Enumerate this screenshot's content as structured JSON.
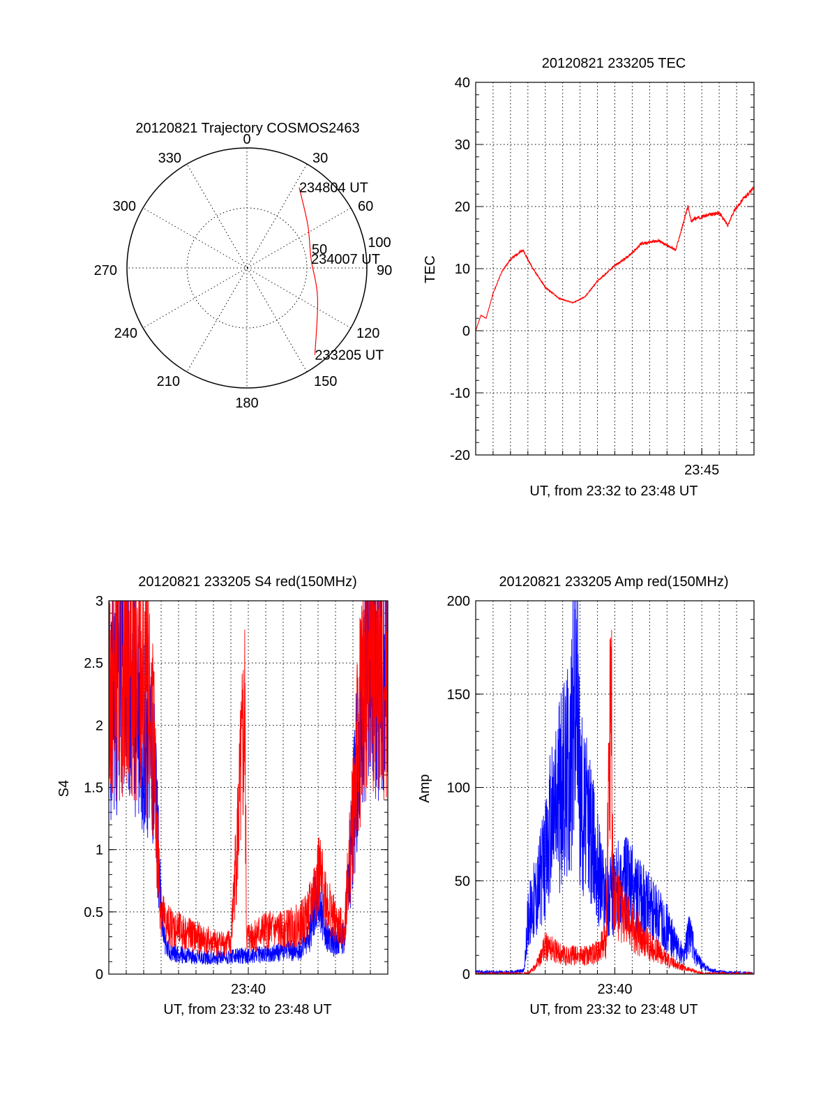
{
  "chart_data": [
    {
      "type": "polar-trajectory",
      "title": "20120821 Trajectory COSMOS2463",
      "azimuth_labels": [
        "0",
        "30",
        "60",
        "90",
        "120",
        "150",
        "180",
        "210",
        "240",
        "270",
        "300",
        "330"
      ],
      "ring_labels": [
        "50",
        "100"
      ],
      "trajectory": {
        "color": "#ff0000",
        "points": [
          {
            "az": 33,
            "r": 80,
            "label": "234804 UT"
          },
          {
            "az": 55,
            "r": 62
          },
          {
            "az": 82,
            "r": 54,
            "label": "234007 UT"
          },
          {
            "az": 113,
            "r": 64
          },
          {
            "az": 142,
            "r": 92,
            "label": "233205 UT"
          }
        ]
      }
    },
    {
      "type": "line",
      "title": "20120821 233205 TEC",
      "xlabel": "UT, from 23:32 to 23:48 UT",
      "ylabel": "TEC",
      "x_tick_labels": [
        "23:45"
      ],
      "y_tick_labels": [
        "-20",
        "-10",
        "0",
        "10",
        "20",
        "30",
        "40"
      ],
      "ylim": [
        -20,
        40
      ],
      "xlim_minutes": [
        0,
        16
      ],
      "grid": true,
      "series": [
        {
          "color": "#ff0000",
          "x": [
            0,
            0.3,
            0.6,
            1,
            1.5,
            2,
            2.7,
            3.3,
            4,
            4.8,
            5.6,
            6.3,
            7,
            8,
            8.8,
            9.5,
            10.5,
            11.5,
            12.2,
            12.4,
            12.5,
            13.2,
            14,
            14.5,
            14.8,
            15.3,
            16
          ],
          "y": [
            0,
            2.5,
            2,
            6,
            9.5,
            11.5,
            13,
            10,
            7,
            5.2,
            4.5,
            5.5,
            8,
            10.5,
            12,
            14,
            14.5,
            13,
            20,
            17.5,
            18,
            18.5,
            19,
            17,
            19,
            21,
            23
          ]
        }
      ]
    },
    {
      "type": "line",
      "title": "20120821 233205 S4 red(150MHz)",
      "xlabel": "UT, from 23:32 to 23:48 UT",
      "ylabel": "S4",
      "x_tick_labels": [
        "23:40"
      ],
      "y_tick_labels": [
        "0",
        "0.5",
        "1",
        "1.5",
        "2",
        "2.5",
        "3"
      ],
      "ylim": [
        0,
        3
      ],
      "xlim_minutes": [
        0,
        16
      ],
      "grid": true,
      "series": [
        {
          "color": "#0000ff",
          "x": [
            0,
            0.5,
            1,
            1.5,
            2,
            2.5,
            2.8,
            3,
            3.3,
            4,
            5,
            6,
            7,
            8,
            9,
            10,
            11,
            11.5,
            12,
            12.5,
            13,
            13.5,
            14,
            14.5,
            15,
            15.5,
            16
          ],
          "y": [
            2.1,
            2.3,
            2.4,
            2.2,
            2.0,
            1.9,
            1.1,
            0.5,
            0.2,
            0.16,
            0.14,
            0.13,
            0.14,
            0.15,
            0.16,
            0.18,
            0.2,
            0.3,
            0.7,
            0.3,
            0.25,
            0.3,
            1.2,
            2.3,
            2.8,
            2.5,
            2.6
          ]
        },
        {
          "color": "#ff0000",
          "x": [
            0,
            0.5,
            1,
            1.5,
            2,
            2.5,
            2.8,
            3,
            3.3,
            4,
            5,
            6,
            7,
            7.8,
            7.9,
            8,
            9,
            10,
            11,
            11.5,
            12,
            12.5,
            13,
            13.5,
            14,
            14.5,
            15,
            15.5,
            16
          ],
          "y": [
            2.2,
            2.5,
            2.6,
            2.4,
            2.2,
            2.0,
            1.0,
            0.5,
            0.4,
            0.35,
            0.3,
            0.25,
            0.25,
            2.05,
            0.3,
            0.3,
            0.35,
            0.35,
            0.4,
            0.5,
            0.8,
            0.6,
            0.4,
            0.35,
            1.3,
            2.2,
            2.6,
            2.3,
            2.4
          ]
        }
      ]
    },
    {
      "type": "line",
      "title": "20120821 233205 Amp red(150MHz)",
      "xlabel": "UT, from 23:32 to 23:48 UT",
      "ylabel": "Amp",
      "x_tick_labels": [
        "23:40"
      ],
      "y_tick_labels": [
        "0",
        "50",
        "100",
        "150",
        "200"
      ],
      "ylim": [
        0,
        200
      ],
      "xlim_minutes": [
        0,
        16
      ],
      "grid": true,
      "series": [
        {
          "color": "#0000ff",
          "x": [
            0,
            2,
            2.8,
            3,
            3.5,
            4,
            4.5,
            5,
            5.5,
            5.8,
            6,
            6.5,
            7,
            7.5,
            8,
            8.5,
            9,
            9.5,
            10,
            10.5,
            11,
            11.5,
            12,
            12.3,
            12.6,
            13,
            13.5,
            14,
            16
          ],
          "y": [
            1,
            1,
            2,
            30,
            45,
            60,
            90,
            100,
            120,
            170,
            95,
            80,
            60,
            40,
            45,
            50,
            45,
            40,
            35,
            30,
            25,
            15,
            10,
            25,
            10,
            5,
            2,
            1,
            0
          ]
        },
        {
          "color": "#ff0000",
          "x": [
            0,
            3,
            3.5,
            4,
            5,
            6,
            6.5,
            7,
            7.5,
            7.8,
            7.9,
            8,
            8.5,
            9,
            9.5,
            10,
            10.5,
            11,
            11.5,
            12,
            12.5,
            13,
            16
          ],
          "y": [
            0,
            0,
            5,
            15,
            10,
            10,
            10,
            12,
            18,
            190,
            25,
            40,
            30,
            25,
            20,
            15,
            12,
            8,
            5,
            3,
            2,
            0,
            0
          ]
        }
      ]
    }
  ]
}
